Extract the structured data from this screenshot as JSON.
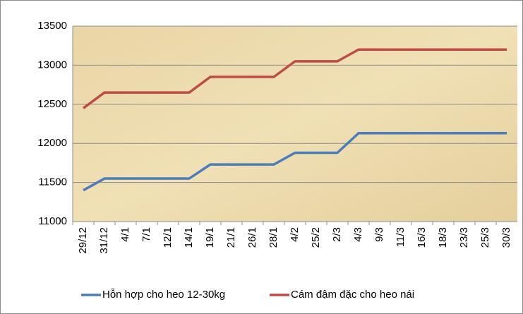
{
  "chart_data": {
    "type": "line",
    "categories": [
      "29/12",
      "31/12",
      "4/1",
      "7/1",
      "12/1",
      "14/1",
      "19/1",
      "21/1",
      "26/1",
      "28/1",
      "4/2",
      "25/2",
      "2/3",
      "4/3",
      "9/3",
      "11/3",
      "16/3",
      "18/3",
      "23/3",
      "25/3",
      "30/3"
    ],
    "series": [
      {
        "name": "Hỗn hợp cho heo 12-30kg",
        "color": "#4a7ebb",
        "values": [
          11400,
          11550,
          11550,
          11550,
          11550,
          11550,
          11730,
          11730,
          11730,
          11730,
          11880,
          11880,
          11880,
          12130,
          12130,
          12130,
          12130,
          12130,
          12130,
          12130,
          12130
        ]
      },
      {
        "name": "Cám đậm đặc cho heo nái",
        "color": "#be4b48",
        "values": [
          12450,
          12650,
          12650,
          12650,
          12650,
          12650,
          12850,
          12850,
          12850,
          12850,
          13050,
          13050,
          13050,
          13200,
          13200,
          13200,
          13200,
          13200,
          13200,
          13200,
          13200
        ]
      }
    ],
    "ylim": [
      11000,
      13500
    ],
    "yticks": [
      11000,
      11500,
      12000,
      12500,
      13000,
      13500
    ],
    "grid": true,
    "legend": "bottom"
  }
}
